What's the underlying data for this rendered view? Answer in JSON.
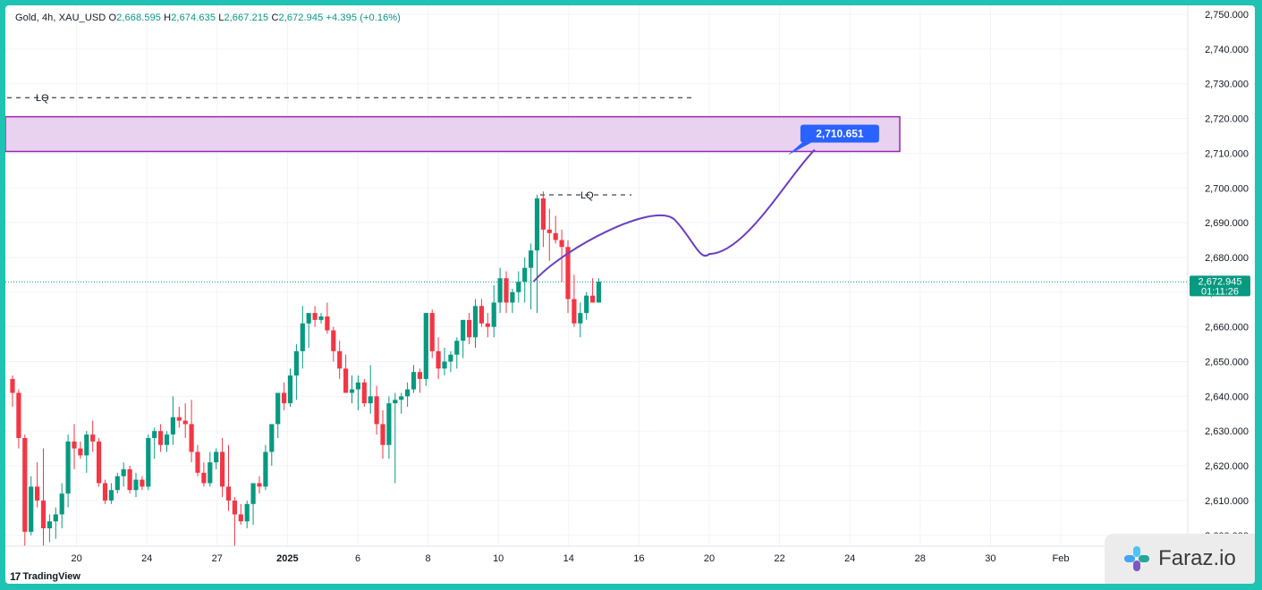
{
  "header": {
    "symbol_label": "Gold, 4h, XAU_USD",
    "open_key": "O",
    "open_value": "2,668.595",
    "high_key": "H",
    "high_value": "2,674.635",
    "low_key": "L",
    "low_value": "2,667.215",
    "close_key": "C",
    "close_value": "2,672.945",
    "change_value": "+4.395 (+0.16%)"
  },
  "price_axis": {
    "labels": [
      "2,750.000",
      "2,740.000",
      "2,730.000",
      "2,720.000",
      "2,710.000",
      "2,700.000",
      "2,690.000",
      "2,680.000",
      "2,670.000",
      "2,660.000",
      "2,650.000",
      "2,640.000",
      "2,630.000",
      "2,620.000",
      "2,610.000",
      "2,600.000"
    ],
    "last_price_label": "2,672.945",
    "countdown_label": "01:11:26"
  },
  "time_axis": {
    "labels": [
      "20",
      "24",
      "27",
      "2025",
      "6",
      "8",
      "10",
      "14",
      "16",
      "20",
      "22",
      "24",
      "28",
      "30",
      "Feb"
    ]
  },
  "annotations": {
    "lq_upper_label": "LQ",
    "lq_lower_label": "LQ",
    "target_label": "2,710.651"
  },
  "footer": {
    "tradingview_label": "TradingView",
    "tradingview_mark": "17",
    "watermark_label": "Faraz.io"
  },
  "colors": {
    "up": "#089981",
    "down": "#f23645",
    "zone_fill": "#e8d2f0",
    "zone_border": "#9c27b0",
    "projection": "#6a3fc0",
    "target_badge": "#2962ff",
    "frame": "#1fc2b3"
  },
  "chart_data": {
    "type": "candlestick",
    "title": "Gold, 4h, XAU_USD",
    "interval": "4h",
    "ylim": [
      2597,
      2752
    ],
    "ohlc": [
      [
        2645,
        2646,
        2637,
        2641
      ],
      [
        2641,
        2642,
        2625,
        2628
      ],
      [
        2628,
        2629,
        2597,
        2601
      ],
      [
        2601,
        2617,
        2600,
        2614
      ],
      [
        2614,
        2621,
        2608,
        2610
      ],
      [
        2610,
        2625,
        2597,
        2602
      ],
      [
        2602,
        2606,
        2598,
        2604
      ],
      [
        2604,
        2608,
        2599,
        2606
      ],
      [
        2606,
        2615,
        2602,
        2612
      ],
      [
        2612,
        2629,
        2608,
        2627
      ],
      [
        2627,
        2632,
        2619,
        2625
      ],
      [
        2625,
        2627,
        2622,
        2623
      ],
      [
        2623,
        2630,
        2618,
        2629
      ],
      [
        2629,
        2633,
        2624,
        2627
      ],
      [
        2627,
        2628,
        2614,
        2615
      ],
      [
        2615,
        2616,
        2609,
        2610
      ],
      [
        2610,
        2615,
        2609,
        2613
      ],
      [
        2613,
        2618,
        2612,
        2617
      ],
      [
        2617,
        2621,
        2614,
        2619
      ],
      [
        2619,
        2620,
        2612,
        2613
      ],
      [
        2613,
        2618,
        2611,
        2616
      ],
      [
        2616,
        2617,
        2613,
        2614
      ],
      [
        2614,
        2629,
        2613,
        2628
      ],
      [
        2628,
        2631,
        2622,
        2630
      ],
      [
        2630,
        2632,
        2624,
        2626
      ],
      [
        2626,
        2630,
        2624,
        2629
      ],
      [
        2629,
        2640,
        2626,
        2634
      ],
      [
        2634,
        2637,
        2631,
        2633
      ],
      [
        2633,
        2638,
        2628,
        2632
      ],
      [
        2632,
        2639,
        2621,
        2624
      ],
      [
        2624,
        2626,
        2617,
        2618
      ],
      [
        2618,
        2621,
        2614,
        2615
      ],
      [
        2615,
        2624,
        2614,
        2621
      ],
      [
        2621,
        2625,
        2619,
        2624
      ],
      [
        2624,
        2628,
        2611,
        2614
      ],
      [
        2614,
        2626,
        2607,
        2610
      ],
      [
        2610,
        2611,
        2597,
        2606
      ],
      [
        2606,
        2609,
        2603,
        2604
      ],
      [
        2604,
        2610,
        2602,
        2609
      ],
      [
        2609,
        2615,
        2603,
        2615
      ],
      [
        2615,
        2617,
        2612,
        2614
      ],
      [
        2614,
        2626,
        2613,
        2624
      ],
      [
        2624,
        2631,
        2620,
        2632
      ],
      [
        2632,
        2640,
        2628,
        2641
      ],
      [
        2641,
        2644,
        2636,
        2638
      ],
      [
        2638,
        2648,
        2637,
        2646
      ],
      [
        2646,
        2655,
        2639,
        2653
      ],
      [
        2653,
        2666,
        2648,
        2661
      ],
      [
        2661,
        2664,
        2654,
        2664
      ],
      [
        2664,
        2666,
        2660,
        2662
      ],
      [
        2662,
        2664,
        2661,
        2663
      ],
      [
        2663,
        2667,
        2658,
        2659
      ],
      [
        2659,
        2660,
        2650,
        2653
      ],
      [
        2653,
        2656,
        2645,
        2648
      ],
      [
        2648,
        2652,
        2641,
        2641
      ],
      [
        2641,
        2646,
        2638,
        2642
      ],
      [
        2642,
        2646,
        2636,
        2644
      ],
      [
        2644,
        2645,
        2637,
        2638
      ],
      [
        2638,
        2649,
        2635,
        2640
      ],
      [
        2640,
        2643,
        2629,
        2632
      ],
      [
        2632,
        2636,
        2622,
        2626
      ],
      [
        2626,
        2640,
        2622,
        2638
      ],
      [
        2638,
        2641,
        2615,
        2639
      ],
      [
        2639,
        2641,
        2635,
        2640
      ],
      [
        2640,
        2644,
        2637,
        2642
      ],
      [
        2642,
        2649,
        2641,
        2647
      ],
      [
        2647,
        2648,
        2641,
        2645
      ],
      [
        2645,
        2664,
        2643,
        2664
      ],
      [
        2664,
        2665,
        2651,
        2653
      ],
      [
        2653,
        2657,
        2645,
        2648
      ],
      [
        2648,
        2654,
        2646,
        2650
      ],
      [
        2650,
        2653,
        2647,
        2652
      ],
      [
        2652,
        2657,
        2648,
        2656
      ],
      [
        2656,
        2662,
        2651,
        2662
      ],
      [
        2662,
        2664,
        2655,
        2657
      ],
      [
        2657,
        2668,
        2654,
        2666
      ],
      [
        2666,
        2668,
        2660,
        2661
      ],
      [
        2661,
        2664,
        2657,
        2660
      ],
      [
        2660,
        2672,
        2657,
        2667
      ],
      [
        2667,
        2677,
        2664,
        2674
      ],
      [
        2674,
        2676,
        2664,
        2667
      ],
      [
        2667,
        2671,
        2664,
        2670
      ],
      [
        2670,
        2676,
        2667,
        2673
      ],
      [
        2673,
        2680,
        2667,
        2677
      ],
      [
        2677,
        2684,
        2665,
        2682
      ],
      [
        2682,
        2698,
        2664,
        2697
      ],
      [
        2697,
        2699,
        2683,
        2688
      ],
      [
        2688,
        2694,
        2679,
        2687
      ],
      [
        2687,
        2692,
        2684,
        2685
      ],
      [
        2685,
        2688,
        2673,
        2683
      ],
      [
        2683,
        2685,
        2664,
        2668
      ],
      [
        2668,
        2675,
        2660,
        2661
      ],
      [
        2661,
        2667,
        2657,
        2664
      ],
      [
        2664,
        2670,
        2662,
        2669
      ],
      [
        2669,
        2674,
        2667,
        2667
      ],
      [
        2667,
        2674,
        2667,
        2673
      ]
    ],
    "levels": [
      {
        "label": "LQ",
        "price": 2726
      },
      {
        "label": "LQ",
        "price": 2698
      }
    ],
    "zone": {
      "top": 2720.5,
      "bottom": 2710.5
    },
    "projection": [
      {
        "date": "Jan 15",
        "price": 2673
      },
      {
        "date": "Jan 19",
        "price": 2691
      },
      {
        "date": "Jan 20",
        "price": 2681
      },
      {
        "date": "Jan 23",
        "price": 2711
      }
    ],
    "last_price": 2672.945
  }
}
